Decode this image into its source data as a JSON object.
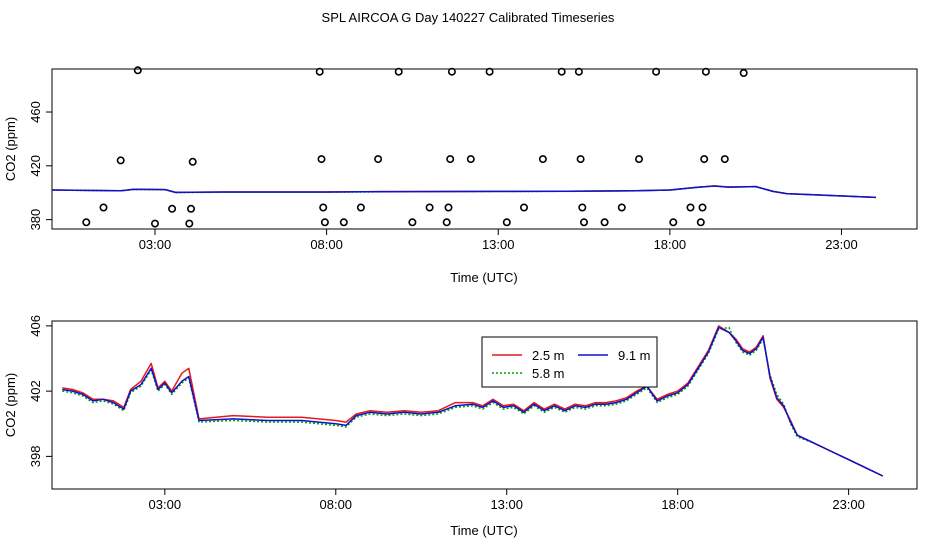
{
  "title": "SPL AIRCOA G  Day 140227  Calibrated Timeseries",
  "colors": {
    "red": "#e41a1c",
    "green": "#00a000",
    "blue": "#1010d0",
    "black": "#000000"
  },
  "chart_data": [
    {
      "type": "scatter+line",
      "xlabel": "Time (UTC)",
      "ylabel": "CO2 (ppm)",
      "xlim": [
        0.0,
        25.2
      ],
      "ylim": [
        373,
        492
      ],
      "xticks": [
        3,
        8,
        13,
        18,
        23
      ],
      "xtick_labels": [
        "03:00",
        "08:00",
        "13:00",
        "18:00",
        "23:00"
      ],
      "yticks": [
        380,
        420,
        460
      ],
      "ytick_labels": [
        "380",
        "420",
        "460"
      ],
      "scatter": {
        "name": "calibration points",
        "points": [
          [
            1.0,
            378
          ],
          [
            1.5,
            389
          ],
          [
            2.0,
            424
          ],
          [
            2.5,
            491
          ],
          [
            3.0,
            377
          ],
          [
            3.5,
            388
          ],
          [
            4.0,
            377
          ],
          [
            4.05,
            388
          ],
          [
            4.1,
            423
          ],
          [
            7.8,
            490
          ],
          [
            7.85,
            425
          ],
          [
            7.9,
            389
          ],
          [
            7.95,
            378
          ],
          [
            8.5,
            378
          ],
          [
            9.0,
            389
          ],
          [
            9.5,
            425
          ],
          [
            10.1,
            490
          ],
          [
            10.5,
            378
          ],
          [
            11.0,
            389
          ],
          [
            11.5,
            378
          ],
          [
            11.55,
            389
          ],
          [
            11.6,
            425
          ],
          [
            11.65,
            490
          ],
          [
            12.2,
            425
          ],
          [
            12.75,
            490
          ],
          [
            13.25,
            378
          ],
          [
            13.75,
            389
          ],
          [
            14.3,
            425
          ],
          [
            14.85,
            490
          ],
          [
            15.35,
            490
          ],
          [
            15.4,
            425
          ],
          [
            15.45,
            389
          ],
          [
            15.5,
            378
          ],
          [
            16.1,
            378
          ],
          [
            16.6,
            389
          ],
          [
            17.1,
            425
          ],
          [
            17.6,
            490
          ],
          [
            18.1,
            378
          ],
          [
            18.6,
            389
          ],
          [
            18.9,
            378
          ],
          [
            18.95,
            389
          ],
          [
            19.0,
            425
          ],
          [
            19.05,
            490
          ],
          [
            19.6,
            425
          ],
          [
            20.15,
            489
          ]
        ]
      },
      "series": [
        {
          "name": "2.5 m",
          "color": "#e41a1c",
          "x": [
            0,
            2.0,
            2.4,
            3.3,
            3.6,
            5,
            8,
            10,
            13,
            15,
            17,
            18,
            18.8,
            19.3,
            19.7,
            20.5,
            21.0,
            21.4,
            24.0
          ],
          "y": [
            402.0,
            401.5,
            402.5,
            402.3,
            400.2,
            400.5,
            400.5,
            400.8,
            401.0,
            401.1,
            401.5,
            402.0,
            404.0,
            405.0,
            404.2,
            404.5,
            401.0,
            399.3,
            396.5
          ]
        },
        {
          "name": "5.8 m",
          "color": "#00a000",
          "x": [
            0,
            2.0,
            2.4,
            3.3,
            3.6,
            5,
            8,
            10,
            13,
            15,
            17,
            18,
            18.8,
            19.3,
            19.7,
            20.5,
            21.0,
            21.4,
            24.0
          ],
          "y": [
            401.9,
            401.4,
            402.4,
            402.2,
            400.1,
            400.4,
            400.4,
            400.7,
            400.9,
            401.0,
            401.4,
            401.9,
            403.9,
            405.1,
            404.3,
            404.6,
            401.2,
            399.2,
            396.5
          ]
        },
        {
          "name": "9.1 m",
          "color": "#1010d0",
          "x": [
            0,
            2.0,
            2.4,
            3.3,
            3.6,
            5,
            8,
            10,
            13,
            15,
            17,
            18,
            18.8,
            19.3,
            19.7,
            20.5,
            21.0,
            21.4,
            24.0
          ],
          "y": [
            402.0,
            401.5,
            402.5,
            402.3,
            400.2,
            400.5,
            400.5,
            400.8,
            401.0,
            401.1,
            401.5,
            402.0,
            404.0,
            405.0,
            404.2,
            404.5,
            401.0,
            399.3,
            396.5
          ]
        }
      ]
    },
    {
      "type": "line",
      "xlabel": "Time (UTC)",
      "ylabel": "CO2 (ppm)",
      "xlim": [
        -0.3,
        25.0
      ],
      "ylim": [
        396.0,
        406.3
      ],
      "xticks": [
        3,
        8,
        13,
        18,
        23
      ],
      "xtick_labels": [
        "03:00",
        "08:00",
        "13:00",
        "18:00",
        "23:00"
      ],
      "yticks": [
        398,
        402,
        406
      ],
      "ytick_labels": [
        "398",
        "402",
        "406"
      ],
      "legend": {
        "position": "top-center",
        "order": [
          0,
          2,
          1
        ]
      },
      "series": [
        {
          "name": "2.5 m",
          "color": "#e41a1c",
          "x": [
            0.0,
            0.3,
            0.6,
            0.9,
            1.2,
            1.5,
            1.8,
            2.0,
            2.3,
            2.6,
            2.8,
            3.0,
            3.2,
            3.5,
            3.7,
            4.0,
            5.0,
            6.0,
            7.0,
            7.5,
            8.0,
            8.3,
            8.6,
            9.0,
            9.5,
            10.0,
            10.5,
            11.0,
            11.5,
            12.0,
            12.3,
            12.6,
            12.9,
            13.2,
            13.5,
            13.8,
            14.1,
            14.4,
            14.7,
            15.0,
            15.3,
            15.6,
            15.9,
            16.2,
            16.5,
            16.8,
            17.1,
            17.4,
            17.7,
            18.0,
            18.3,
            18.6,
            18.9,
            19.2,
            19.5,
            19.7,
            19.9,
            20.1,
            20.3,
            20.5,
            20.7,
            20.9,
            21.1,
            21.3,
            21.5,
            22.0,
            22.5,
            23.0,
            23.5,
            24.0
          ],
          "y": [
            402.2,
            402.1,
            401.9,
            401.5,
            401.5,
            401.4,
            401.0,
            402.1,
            402.6,
            403.7,
            402.2,
            402.6,
            402.0,
            403.1,
            403.4,
            400.3,
            400.5,
            400.4,
            400.4,
            400.3,
            400.2,
            400.1,
            400.6,
            400.8,
            400.7,
            400.8,
            400.7,
            400.8,
            401.3,
            401.3,
            401.1,
            401.5,
            401.1,
            401.2,
            400.8,
            401.3,
            400.9,
            401.2,
            400.9,
            401.2,
            401.1,
            401.3,
            401.3,
            401.4,
            401.6,
            402.0,
            402.3,
            401.5,
            401.8,
            402.0,
            402.5,
            403.5,
            404.5,
            406.0,
            405.6,
            405.2,
            404.6,
            404.4,
            404.7,
            405.4,
            402.8,
            401.5,
            401.0,
            400.2,
            399.3,
            398.8,
            398.3,
            397.8,
            397.3,
            396.8
          ]
        },
        {
          "name": "5.8 m",
          "color": "#00a000",
          "x": [
            0.0,
            0.3,
            0.6,
            0.9,
            1.2,
            1.5,
            1.8,
            2.0,
            2.3,
            2.6,
            2.8,
            3.0,
            3.2,
            3.5,
            3.7,
            4.0,
            5.0,
            6.0,
            7.0,
            7.5,
            8.0,
            8.3,
            8.6,
            9.0,
            9.5,
            10.0,
            10.5,
            11.0,
            11.5,
            12.0,
            12.3,
            12.6,
            12.9,
            13.2,
            13.5,
            13.8,
            14.1,
            14.4,
            14.7,
            15.0,
            15.3,
            15.6,
            15.9,
            16.2,
            16.5,
            16.8,
            17.1,
            17.4,
            17.7,
            18.0,
            18.3,
            18.6,
            18.9,
            19.2,
            19.5,
            19.7,
            19.9,
            20.1,
            20.3,
            20.5,
            20.7,
            20.9,
            21.1,
            21.3,
            21.5,
            22.0,
            22.5,
            23.0,
            23.5,
            24.0
          ],
          "y": [
            402.0,
            401.9,
            401.7,
            401.3,
            401.4,
            401.2,
            400.8,
            401.9,
            402.3,
            403.3,
            402.0,
            402.4,
            401.8,
            402.5,
            402.8,
            400.1,
            400.2,
            400.1,
            400.1,
            400.0,
            399.9,
            399.8,
            400.4,
            400.6,
            400.5,
            400.6,
            400.5,
            400.6,
            401.0,
            401.1,
            400.9,
            401.3,
            400.9,
            401.0,
            400.6,
            401.1,
            400.7,
            401.0,
            400.7,
            401.0,
            400.9,
            401.1,
            401.1,
            401.2,
            401.4,
            401.8,
            402.2,
            401.3,
            401.6,
            401.8,
            402.3,
            403.3,
            404.3,
            405.8,
            405.9,
            405.0,
            404.4,
            404.2,
            404.5,
            405.2,
            403.0,
            401.8,
            401.2,
            400.0,
            399.2,
            398.8,
            398.3,
            397.8,
            397.3,
            396.8
          ]
        },
        {
          "name": "9.1 m",
          "color": "#1010d0",
          "x": [
            0.0,
            0.3,
            0.6,
            0.9,
            1.2,
            1.5,
            1.8,
            2.0,
            2.3,
            2.6,
            2.8,
            3.0,
            3.2,
            3.5,
            3.7,
            4.0,
            5.0,
            6.0,
            7.0,
            7.5,
            8.0,
            8.3,
            8.6,
            9.0,
            9.5,
            10.0,
            10.5,
            11.0,
            11.5,
            12.0,
            12.3,
            12.6,
            12.9,
            13.2,
            13.5,
            13.8,
            14.1,
            14.4,
            14.7,
            15.0,
            15.3,
            15.6,
            15.9,
            16.2,
            16.5,
            16.8,
            17.1,
            17.4,
            17.7,
            18.0,
            18.3,
            18.6,
            18.9,
            19.2,
            19.5,
            19.7,
            19.9,
            20.1,
            20.3,
            20.5,
            20.7,
            20.9,
            21.1,
            21.3,
            21.5,
            22.0,
            22.5,
            23.0,
            23.5,
            24.0
          ],
          "y": [
            402.1,
            402.0,
            401.8,
            401.4,
            401.5,
            401.3,
            400.9,
            402.0,
            402.4,
            403.4,
            402.1,
            402.5,
            401.9,
            402.6,
            402.9,
            400.2,
            400.3,
            400.2,
            400.2,
            400.1,
            400.0,
            399.9,
            400.5,
            400.7,
            400.6,
            400.7,
            400.6,
            400.7,
            401.1,
            401.2,
            401.0,
            401.4,
            401.0,
            401.1,
            400.7,
            401.2,
            400.8,
            401.1,
            400.8,
            401.1,
            401.0,
            401.2,
            401.2,
            401.3,
            401.5,
            401.9,
            402.3,
            401.4,
            401.7,
            401.9,
            402.4,
            403.4,
            404.4,
            405.9,
            405.6,
            405.1,
            404.5,
            404.3,
            404.6,
            405.3,
            402.9,
            401.6,
            401.1,
            400.1,
            399.3,
            398.8,
            398.3,
            397.8,
            397.3,
            396.8
          ]
        }
      ]
    }
  ]
}
